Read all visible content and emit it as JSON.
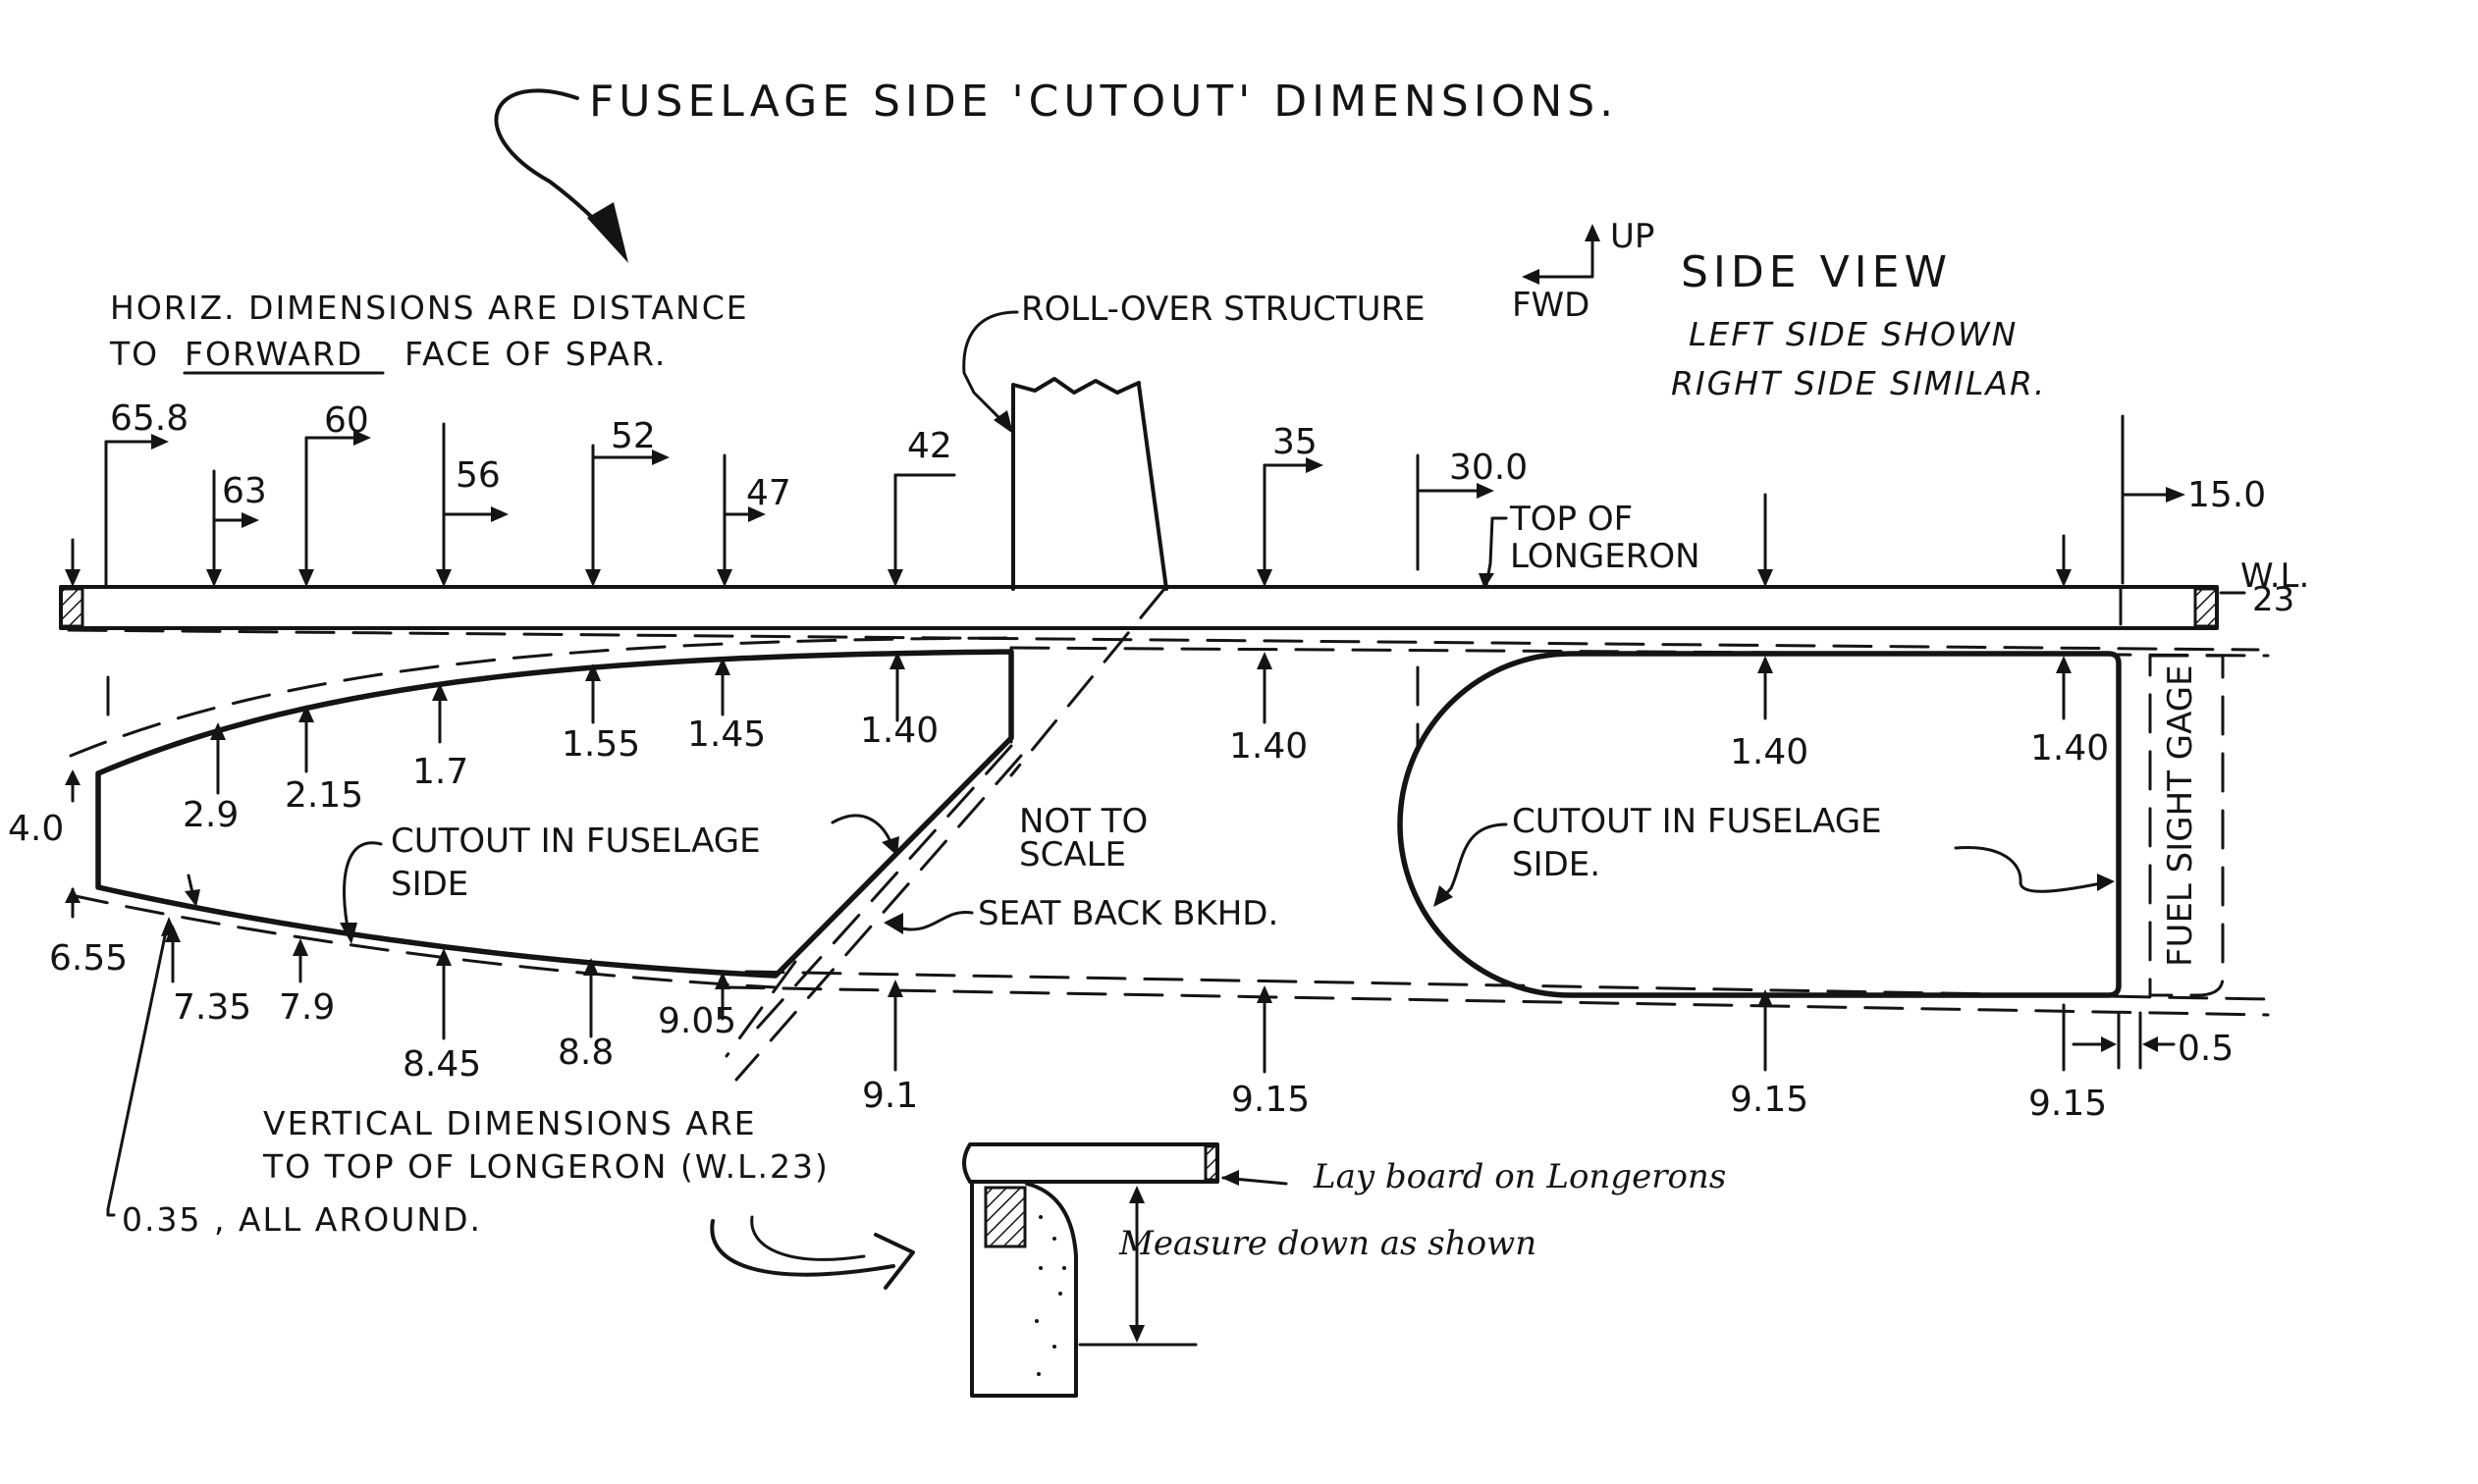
{
  "title": "FUSELAGE  SIDE  'CUTOUT'  DIMENSIONS.",
  "notes": {
    "horiz_line1": "HORIZ. DIMENSIONS ARE DISTANCE",
    "horiz_line2_pre": "TO",
    "horiz_line2_emph": "FORWARD",
    "horiz_line2_post": "FACE OF SPAR.",
    "rollover": "ROLL-OVER STRUCTURE",
    "up": "UP",
    "fwd": "FWD",
    "side_view": "SIDE VIEW",
    "left_side": "LEFT SIDE SHOWN",
    "right_side": "RIGHT SIDE SIMILAR.",
    "top_of": "TOP OF",
    "longeron": "LONGERON",
    "wl": "W.L.",
    "wl_value": "23",
    "cutout_left_1": "CUTOUT  IN FUSELAGE",
    "cutout_left_2": "SIDE",
    "not_to": "NOT TO",
    "scale": "SCALE",
    "seat_back": "SEAT BACK BKHD.",
    "cutout_right_1": "CUTOUT  IN FUSELAGE",
    "cutout_right_2": "SIDE.",
    "fuel_gage": "FUEL SIGHT GAGE",
    "vertical_1": "VERTICAL DIMENSIONS ARE",
    "vertical_2": "TO TOP OF LONGERON (W.L.23)",
    "all_around": "0.35 , ALL AROUND.",
    "lay_board": "Lay board on Longerons",
    "measure_down": "Measure down as shown"
  },
  "horizontal_dims": [
    "65.8",
    "63",
    "60",
    "56",
    "52",
    "47",
    "42",
    "35",
    "30.0",
    "15.0"
  ],
  "upper_dims": [
    "4.0",
    "2.9",
    "2.15",
    "1.7",
    "1.55",
    "1.45",
    "1.40",
    "1.40",
    "1.40",
    "1.40"
  ],
  "lower_dims": [
    "6.55",
    "7.35",
    "7.9",
    "8.45",
    "8.8",
    "9.05",
    "9.1",
    "9.15",
    "9.15",
    "9.15"
  ],
  "gap_dim": "0.5"
}
